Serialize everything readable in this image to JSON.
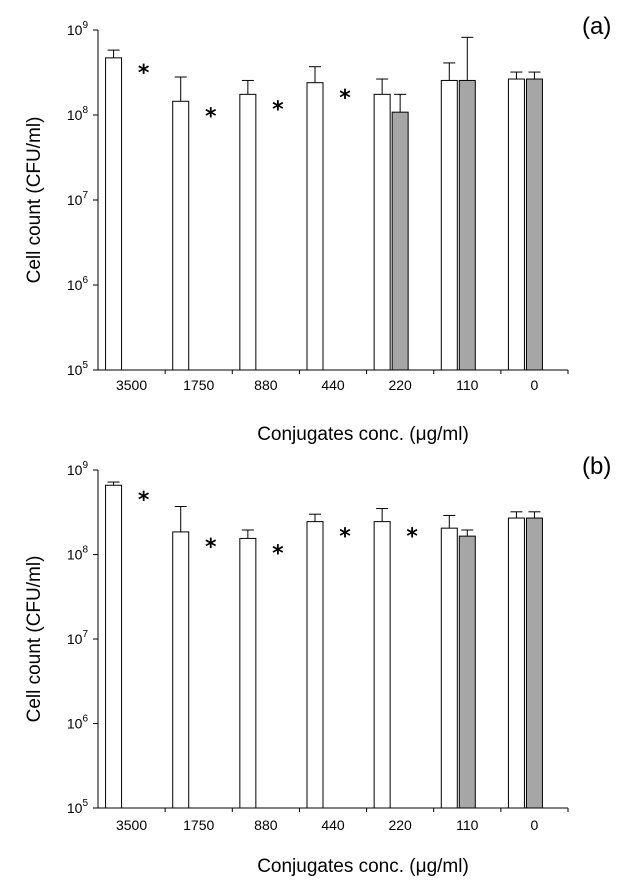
{
  "chart_data": [
    {
      "type": "bar",
      "panel_label": "(a)",
      "xlabel": "Conjugates conc. (μg/ml)",
      "ylabel": "Cell count (CFU/ml)",
      "y_scale": "log",
      "ylim": [
        100000,
        1000000000
      ],
      "y_ticks": [
        {
          "base": "10",
          "exp": "5"
        },
        {
          "base": "10",
          "exp": "6"
        },
        {
          "base": "10",
          "exp": "7"
        },
        {
          "base": "10",
          "exp": "8"
        },
        {
          "base": "10",
          "exp": "9"
        }
      ],
      "categories": [
        "3500",
        "1750",
        "880",
        "440",
        "220",
        "110",
        "0"
      ],
      "series": [
        {
          "color": "#ffffff",
          "values": [
            470000000,
            145000000,
            175000000,
            240000000,
            175000000,
            255000000,
            265000000
          ],
          "errors": [
            580000000,
            280000000,
            255000000,
            370000000,
            265000000,
            410000000,
            320000000
          ]
        },
        {
          "color": "#a6a6a6",
          "values": [
            null,
            null,
            null,
            null,
            108000000,
            255000000,
            265000000
          ],
          "errors": [
            null,
            null,
            null,
            null,
            175000000,
            820000000,
            320000000
          ]
        }
      ],
      "significance": [
        "*",
        "*",
        "*",
        "*",
        "",
        "",
        ""
      ]
    },
    {
      "type": "bar",
      "panel_label": "(b)",
      "xlabel": "Conjugates conc. (μg/ml)",
      "ylabel": "Cell count (CFU/ml)",
      "y_scale": "log",
      "ylim": [
        100000,
        1000000000
      ],
      "y_ticks": [
        {
          "base": "10",
          "exp": "5"
        },
        {
          "base": "10",
          "exp": "6"
        },
        {
          "base": "10",
          "exp": "7"
        },
        {
          "base": "10",
          "exp": "8"
        },
        {
          "base": "10",
          "exp": "9"
        }
      ],
      "categories": [
        "3500",
        "1750",
        "880",
        "440",
        "220",
        "110",
        "0"
      ],
      "series": [
        {
          "color": "#ffffff",
          "values": [
            660000000,
            185000000,
            155000000,
            245000000,
            245000000,
            205000000,
            270000000
          ],
          "errors": [
            720000000,
            370000000,
            195000000,
            300000000,
            350000000,
            290000000,
            320000000
          ]
        },
        {
          "color": "#a6a6a6",
          "values": [
            null,
            null,
            null,
            null,
            null,
            165000000,
            270000000
          ],
          "errors": [
            null,
            null,
            null,
            null,
            null,
            195000000,
            320000000
          ]
        }
      ],
      "significance": [
        "*",
        "*",
        "*",
        "*",
        "*",
        "",
        ""
      ]
    }
  ]
}
